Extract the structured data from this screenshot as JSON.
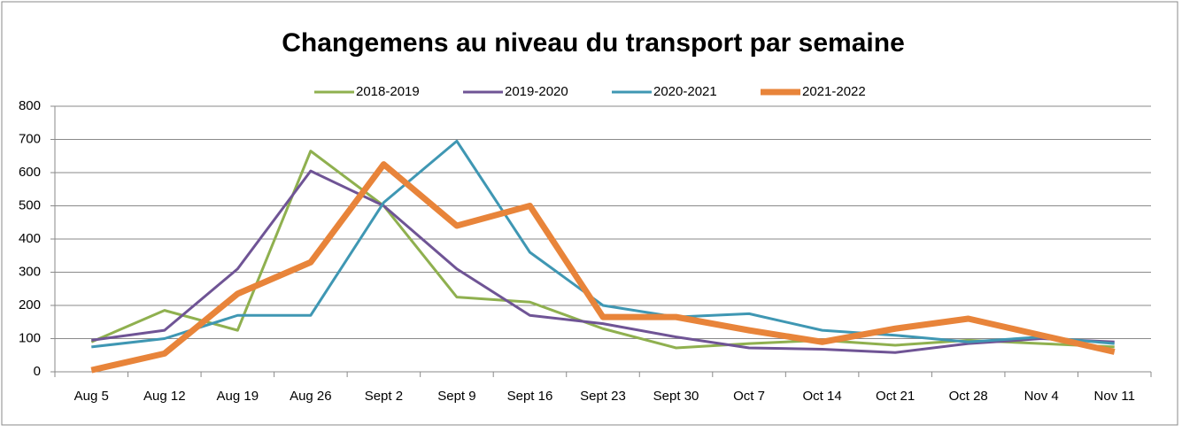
{
  "chart_data": {
    "type": "line",
    "title": "Changemens au niveau du transport par semaine",
    "categories": [
      "Aug 5",
      "Aug 12",
      "Aug 19",
      "Aug 26",
      "Sept 2",
      "Sept 9",
      "Sept 16",
      "Sept 23",
      "Sept 30",
      "Oct 7",
      "Oct 14",
      "Oct 21",
      "Oct 28",
      "Nov 4",
      "Nov 11"
    ],
    "series": [
      {
        "name": "2018-2019",
        "color": "#8fb04f",
        "values": [
          90,
          185,
          125,
          665,
          500,
          225,
          210,
          130,
          72,
          85,
          95,
          80,
          95,
          85,
          75
        ]
      },
      {
        "name": "2019-2020",
        "color": "#6f5495",
        "values": [
          95,
          125,
          310,
          605,
          500,
          310,
          170,
          145,
          105,
          72,
          68,
          58,
          85,
          100,
          90
        ]
      },
      {
        "name": "2020-2021",
        "color": "#3f97b3",
        "values": [
          75,
          100,
          170,
          170,
          510,
          695,
          360,
          200,
          165,
          175,
          125,
          110,
          90,
          105,
          85
        ]
      },
      {
        "name": "2021-2022",
        "color": "#e8843a",
        "values": [
          5,
          55,
          235,
          330,
          625,
          440,
          500,
          165,
          165,
          125,
          90,
          130,
          160,
          110,
          60
        ]
      }
    ],
    "ylim": [
      0,
      800
    ],
    "yticks": [
      0,
      100,
      200,
      300,
      400,
      500,
      600,
      700,
      800
    ],
    "grid": true,
    "legend": "top"
  }
}
